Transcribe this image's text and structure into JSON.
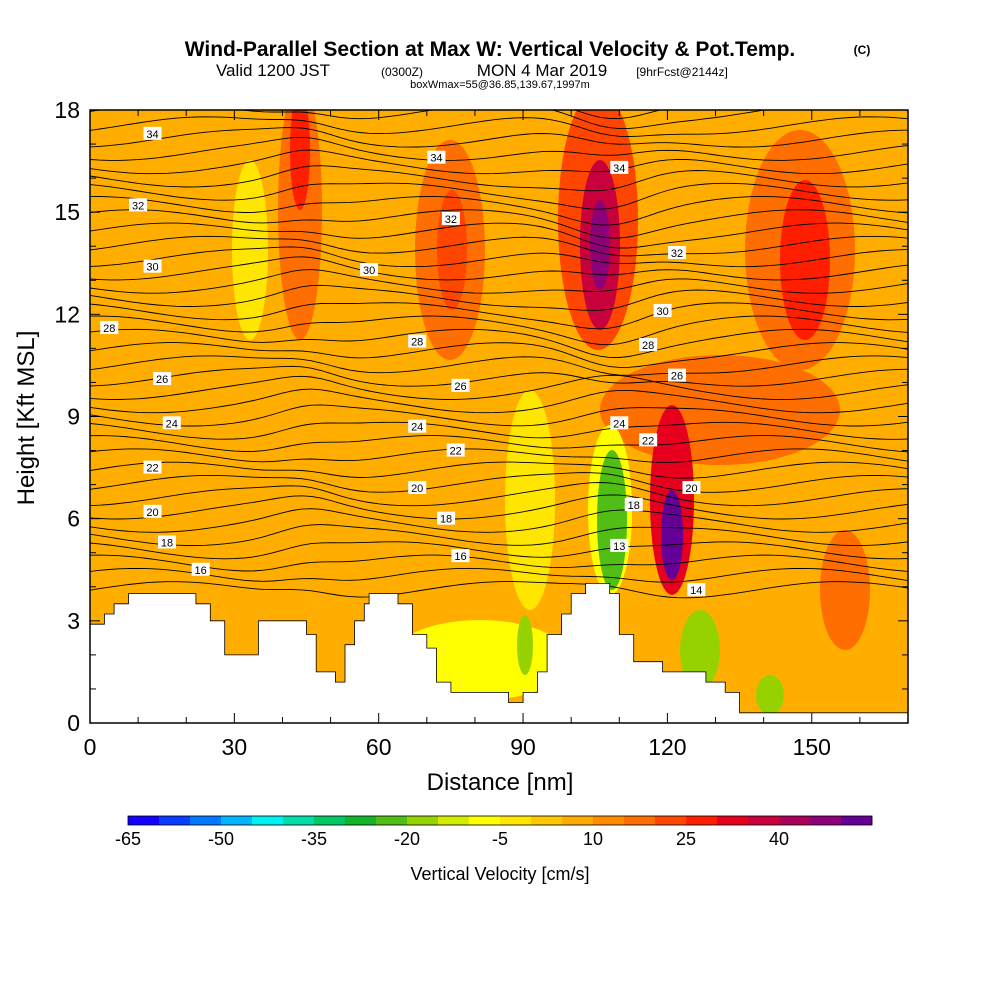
{
  "chart_data": {
    "type": "heatmap",
    "title": {
      "main": "Wind-Parallel Section at Max W: Vertical Velocity & Pot.Temp.",
      "copyright": "(C)"
    },
    "subtitle": {
      "valid_prefix": "Valid 1200 JST",
      "utc": "(0300Z)",
      "valid_date": "MON 4 Mar 2019",
      "forecast": "[9hrFcst@2144z]"
    },
    "box_info": "boxWmax=55@36.85,139.67,1997m",
    "xlabel": "Distance [nm]",
    "ylabel": "Height [Kft MSL]",
    "xlim": [
      0,
      170
    ],
    "ylim": [
      0,
      18
    ],
    "x_ticks": [
      "0",
      "30",
      "60",
      "90",
      "120",
      "150"
    ],
    "y_ticks": [
      "0",
      "3",
      "6",
      "9",
      "12",
      "15",
      "18"
    ],
    "colorbar": {
      "label": "Vertical Velocity [cm/s]",
      "tick_labels": [
        "-65",
        "-50",
        "-35",
        "-20",
        "-5",
        "10",
        "25",
        "40"
      ],
      "colors": [
        "#1400ff",
        "#0a3cff",
        "#0078ff",
        "#00b4ff",
        "#00f0f0",
        "#00dcaa",
        "#00c864",
        "#14b428",
        "#50be14",
        "#96d200",
        "#d2ec00",
        "#ffff00",
        "#ffe600",
        "#ffc800",
        "#ffaa00",
        "#ff8c00",
        "#ff6e00",
        "#ff4600",
        "#ff1e00",
        "#e6001e",
        "#c8003c",
        "#aa005a",
        "#8c0078",
        "#640096"
      ]
    },
    "contour_labels": [
      {
        "text": "34",
        "x": 13,
        "y": 17.3
      },
      {
        "text": "34",
        "x": 72,
        "y": 16.6
      },
      {
        "text": "34",
        "x": 110,
        "y": 16.3
      },
      {
        "text": "32",
        "x": 10,
        "y": 15.2
      },
      {
        "text": "32",
        "x": 75,
        "y": 14.8
      },
      {
        "text": "32",
        "x": 122,
        "y": 13.8
      },
      {
        "text": "30",
        "x": 13,
        "y": 13.4
      },
      {
        "text": "30",
        "x": 58,
        "y": 13.3
      },
      {
        "text": "30",
        "x": 119,
        "y": 12.1
      },
      {
        "text": "28",
        "x": 4,
        "y": 11.6
      },
      {
        "text": "28",
        "x": 68,
        "y": 11.2
      },
      {
        "text": "28",
        "x": 116,
        "y": 11.1
      },
      {
        "text": "26",
        "x": 15,
        "y": 10.1
      },
      {
        "text": "26",
        "x": 77,
        "y": 9.9
      },
      {
        "text": "26",
        "x": 122,
        "y": 10.2
      },
      {
        "text": "24",
        "x": 17,
        "y": 8.8
      },
      {
        "text": "24",
        "x": 68,
        "y": 8.7
      },
      {
        "text": "24",
        "x": 110,
        "y": 8.8
      },
      {
        "text": "22",
        "x": 13,
        "y": 7.5
      },
      {
        "text": "22",
        "x": 76,
        "y": 8.0
      },
      {
        "text": "22",
        "x": 116,
        "y": 8.3
      },
      {
        "text": "20",
        "x": 13,
        "y": 6.2
      },
      {
        "text": "20",
        "x": 68,
        "y": 6.9
      },
      {
        "text": "20",
        "x": 125,
        "y": 6.9
      },
      {
        "text": "18",
        "x": 16,
        "y": 5.3
      },
      {
        "text": "18",
        "x": 74,
        "y": 6.0
      },
      {
        "text": "18",
        "x": 113,
        "y": 6.4
      },
      {
        "text": "16",
        "x": 23,
        "y": 4.5
      },
      {
        "text": "16",
        "x": 77,
        "y": 4.9
      },
      {
        "text": "13",
        "x": 110,
        "y": 5.2
      },
      {
        "text": "14",
        "x": 126,
        "y": 3.9
      }
    ]
  }
}
